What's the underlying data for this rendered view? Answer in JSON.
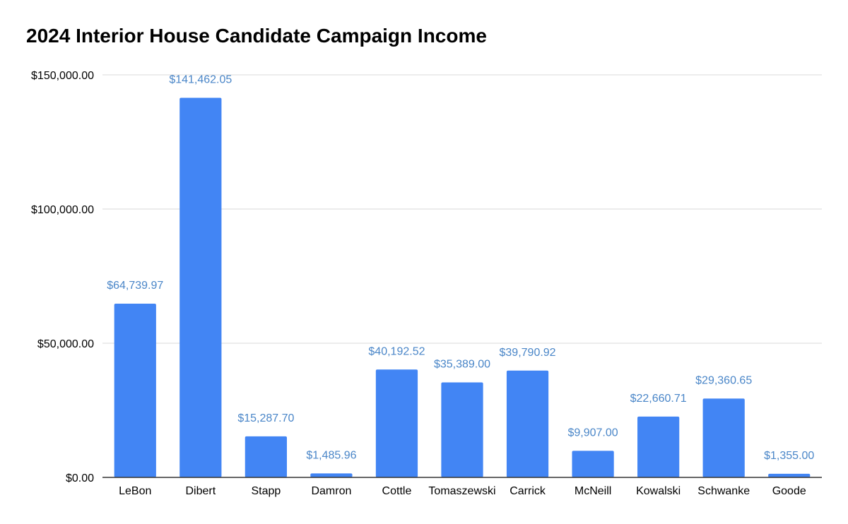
{
  "chart_data": {
    "type": "bar",
    "title": "2024 Interior House Candidate Campaign Income",
    "xlabel": "",
    "ylabel": "",
    "ylim": [
      0,
      150000
    ],
    "yticks": [
      0,
      50000,
      100000,
      150000
    ],
    "ytick_labels": [
      "$0.00",
      "$50,000.00",
      "$100,000.00",
      "$150,000.00"
    ],
    "grid": true,
    "legend": "none",
    "categories": [
      "LeBon",
      "Dibert",
      "Stapp",
      "Damron",
      "Cottle",
      "Tomaszewski",
      "Carrick",
      "McNeill",
      "Kowalski",
      "Schwanke",
      "Goode"
    ],
    "series": [
      {
        "name": "Campaign Income",
        "values": [
          64739.97,
          141462.05,
          15287.7,
          1485.96,
          40192.52,
          35389.0,
          39790.92,
          9907.0,
          22660.71,
          29360.65,
          1355.0
        ],
        "data_labels": [
          "$64,739.97",
          "$141,462.05",
          "$15,287.70",
          "$1,485.96",
          "$40,192.52",
          "$35,389.00",
          "$39,790.92",
          "$9,907.00",
          "$22,660.71",
          "$29,360.65",
          "$1,355.00"
        ]
      }
    ],
    "colors": {
      "bar": "#4285f4",
      "data_label": "#4a86c8",
      "gridline": "#d9d9d9",
      "axis": "#333333"
    }
  }
}
